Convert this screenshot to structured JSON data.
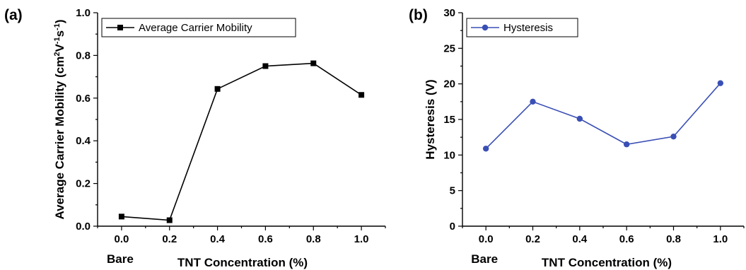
{
  "chart_data": [
    {
      "type": "line",
      "panel_label": "(a)",
      "xlabel": "TNT Concentration (%)",
      "x_extra_label": "Bare",
      "ylabel_parts": [
        "Average Carrier Mobility (cm",
        "2",
        "V",
        "-1",
        "s",
        "-1",
        ")"
      ],
      "x_ticks": [
        "0.0",
        "0.2",
        "0.4",
        "0.6",
        "0.8",
        "1.0"
      ],
      "y_ticks": [
        "0.0",
        "0.2",
        "0.4",
        "0.6",
        "0.8",
        "1.0"
      ],
      "xlim": [
        -0.1,
        1.1
      ],
      "ylim": [
        0,
        1.0
      ],
      "legend_placement": "top-left",
      "series": [
        {
          "name": "Average Carrier Mobility",
          "marker": "square",
          "color": "#000000",
          "x": [
            0.0,
            0.2,
            0.4,
            0.6,
            0.8,
            1.0
          ],
          "values": [
            0.045,
            0.028,
            0.643,
            0.75,
            0.763,
            0.615
          ]
        }
      ]
    },
    {
      "type": "line",
      "panel_label": "(b)",
      "xlabel": "TNT Concentration (%)",
      "x_extra_label": "Bare",
      "ylabel_parts": [
        "Hysteresis (V)"
      ],
      "x_ticks": [
        "0.0",
        "0.2",
        "0.4",
        "0.6",
        "0.8",
        "1.0"
      ],
      "y_ticks": [
        "0",
        "5",
        "10",
        "15",
        "20",
        "25",
        "30"
      ],
      "xlim": [
        -0.1,
        1.1
      ],
      "ylim": [
        0,
        30
      ],
      "legend_placement": "top-left",
      "series": [
        {
          "name": "Hysteresis",
          "marker": "circle",
          "color": "#3a4fb5",
          "x": [
            0.0,
            0.2,
            0.4,
            0.6,
            0.8,
            1.0
          ],
          "values": [
            10.9,
            17.5,
            15.1,
            11.5,
            12.6,
            20.1
          ]
        }
      ]
    }
  ]
}
